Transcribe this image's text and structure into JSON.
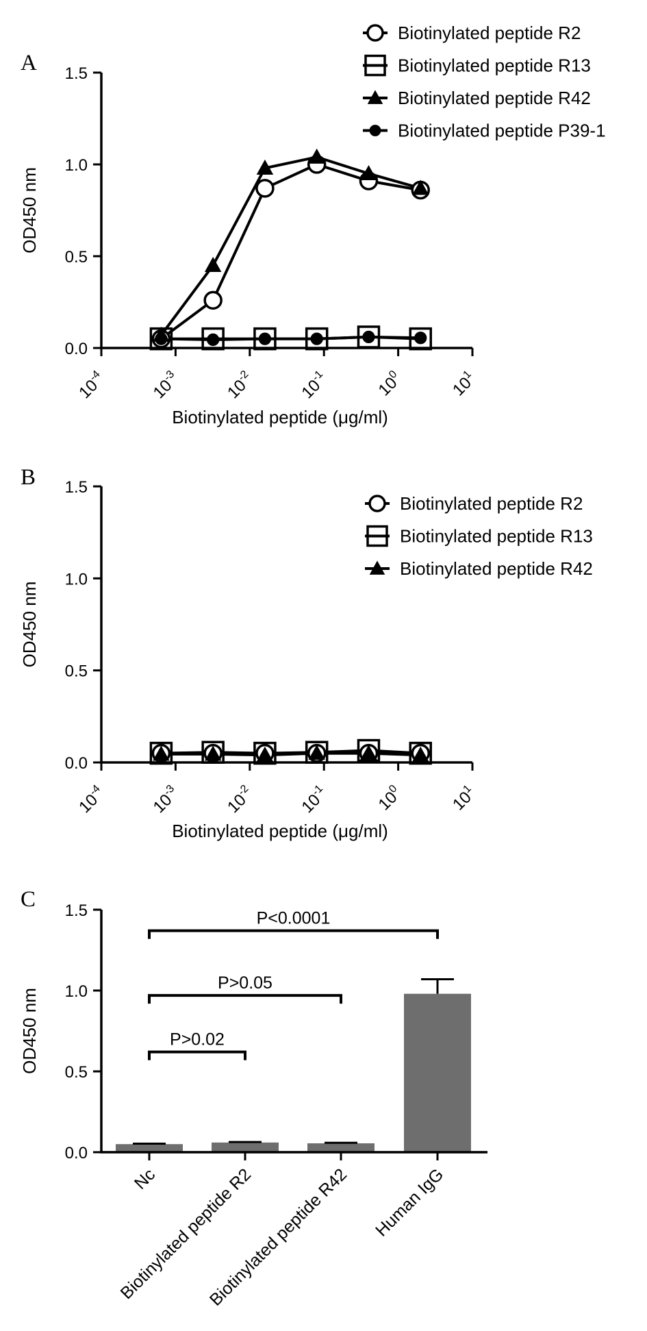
{
  "chart_data": [
    {
      "panel": "A",
      "type": "line",
      "xlabel": "Biotinylated peptide (μg/ml)",
      "ylabel": "OD450 nm",
      "xscale": "log",
      "xlim": [
        0.0001,
        10
      ],
      "ylim": [
        0,
        1.5
      ],
      "x_ticks": [
        {
          "base": "10",
          "exp": "-4"
        },
        {
          "base": "10",
          "exp": "-3"
        },
        {
          "base": "10",
          "exp": "-2"
        },
        {
          "base": "10",
          "exp": "-1"
        },
        {
          "base": "10",
          "exp": "0"
        },
        {
          "base": "10",
          "exp": "1"
        }
      ],
      "y_ticks": [
        "0.0",
        "0.5",
        "1.0",
        "1.5"
      ],
      "legend_position": "top-right",
      "x": [
        0.00064,
        0.0032,
        0.016,
        0.08,
        0.4,
        2
      ],
      "series": [
        {
          "name": "Biotinylated peptide R2",
          "marker": "circle-open",
          "values": [
            0.05,
            0.26,
            0.87,
            1.0,
            0.91,
            0.86
          ]
        },
        {
          "name": "Biotinylated peptide R13",
          "marker": "square-open",
          "values": [
            0.05,
            0.05,
            0.05,
            0.05,
            0.06,
            0.05
          ]
        },
        {
          "name": "Biotinylated peptide R42",
          "marker": "triangle-filled",
          "values": [
            0.07,
            0.45,
            0.98,
            1.04,
            0.95,
            0.87
          ]
        },
        {
          "name": "Biotinylated peptide P39-1",
          "marker": "circle-filled",
          "values": [
            0.05,
            0.045,
            0.05,
            0.05,
            0.06,
            0.055
          ]
        }
      ]
    },
    {
      "panel": "B",
      "type": "line",
      "xlabel": "Biotinylated peptide (μg/ml)",
      "ylabel": "OD450 nm",
      "xscale": "log",
      "xlim": [
        0.0001,
        10
      ],
      "ylim": [
        0,
        1.5
      ],
      "x_ticks": [
        {
          "base": "10",
          "exp": "-4"
        },
        {
          "base": "10",
          "exp": "-3"
        },
        {
          "base": "10",
          "exp": "-2"
        },
        {
          "base": "10",
          "exp": "-1"
        },
        {
          "base": "10",
          "exp": "0"
        },
        {
          "base": "10",
          "exp": "1"
        }
      ],
      "y_ticks": [
        "0.0",
        "0.5",
        "1.0",
        "1.5"
      ],
      "legend_position": "top-right",
      "x": [
        0.00064,
        0.0032,
        0.016,
        0.08,
        0.4,
        2
      ],
      "series": [
        {
          "name": "Biotinylated peptide R2",
          "marker": "circle-open",
          "values": [
            0.05,
            0.05,
            0.05,
            0.05,
            0.05,
            0.05
          ]
        },
        {
          "name": "Biotinylated peptide R13",
          "marker": "square-open",
          "values": [
            0.05,
            0.055,
            0.05,
            0.055,
            0.065,
            0.05
          ]
        },
        {
          "name": "Biotinylated peptide R42",
          "marker": "triangle-filled",
          "values": [
            0.045,
            0.045,
            0.04,
            0.05,
            0.05,
            0.04
          ]
        }
      ]
    },
    {
      "panel": "C",
      "type": "bar",
      "ylabel": "OD450 nm",
      "ylim": [
        0,
        1.5
      ],
      "y_ticks": [
        "0.0",
        "0.5",
        "1.0",
        "1.5"
      ],
      "bar_color": "#6e6e6e",
      "categories": [
        "Nc",
        "Biotinylated peptide R2",
        "Biotinylated peptide R42",
        "Human IgG"
      ],
      "values": [
        0.05,
        0.06,
        0.055,
        0.98
      ],
      "errors": [
        0.003,
        0.003,
        0.003,
        0.09
      ],
      "comparisons": [
        {
          "from": 0,
          "to": 1,
          "label": "P>0.02",
          "level": 0.62
        },
        {
          "from": 0,
          "to": 2,
          "label": "P>0.05",
          "level": 0.97
        },
        {
          "from": 0,
          "to": 3,
          "label": "P<0.0001",
          "level": 1.37
        }
      ]
    }
  ]
}
